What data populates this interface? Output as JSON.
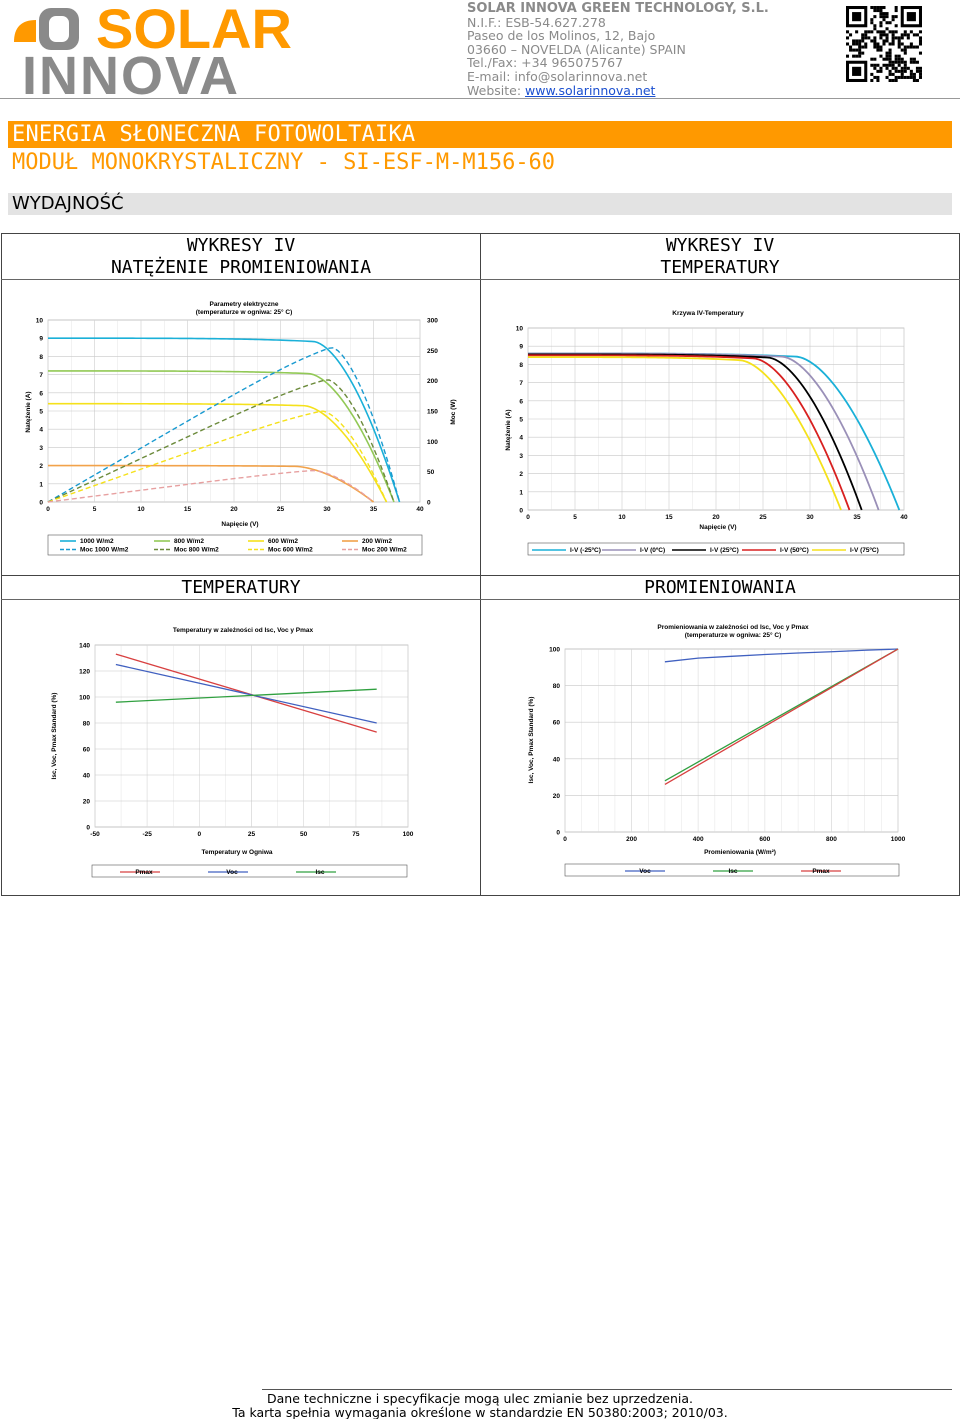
{
  "header": {
    "logo_text_top": "SOLAR",
    "logo_text_bottom": "INNOVA",
    "company_name": "SOLAR INNOVA GREEN TECHNOLOGY, S.L.",
    "nif": "N.I.F.: ESB-54.627.278",
    "address1": "Paseo de los Molinos, 12, Bajo",
    "address2": "03660 – NOVELDA (Alicante) SPAIN",
    "phone": "Tel./Fax: +34 965075767",
    "email": "E-mail: info@solarinnova.net",
    "website_label": "Website: ",
    "website": "www.solarinnova.net"
  },
  "title": {
    "category": "ENERGIA SŁONECZNA FOTOWOLTAIKA",
    "product": "MODUŁ MONOKRYSTALICZNY - SI-ESF-M-M156-60",
    "section": "WYDAJNOŚĆ"
  },
  "panels": {
    "p1_head_1": "WYKRESY IV",
    "p1_head_2": "NATĘŻENIE PROMIENIOWANIA",
    "p2_head_1": "WYKRESY IV",
    "p2_head_2": "TEMPERATURY",
    "p3_head": "TEMPERATURY",
    "p4_head": "PROMIENIOWANIA"
  },
  "footer": {
    "line1": "Dane techniczne i specyfikacje mogą ulec zmianie bez uprzedzenia.",
    "line2": "Ta karta spełnia wymagania określone w standardzie EN 50380:2003; 2010/03."
  },
  "colors": {
    "orange": "#ff9900",
    "grey_band": "#e3e3e3"
  },
  "chart_data": [
    {
      "type": "line",
      "title": "Parametry elektryczne (temperaturze w ogniwa: 25° C)",
      "title_1": "Parametry elektryczne",
      "title_2": "(temperaturze w ogniwa: 25° C)",
      "xlabel": "Napięcie (V)",
      "ylabel": "Natężenie (A)",
      "y2label": "Moc (W)",
      "xlim": [
        0,
        40
      ],
      "ylim": [
        0,
        10
      ],
      "y2lim": [
        0,
        300
      ],
      "xticks": [
        "0",
        "5",
        "10",
        "15",
        "20",
        "25",
        "30",
        "35",
        "40"
      ],
      "yticks": [
        "0",
        "1",
        "2",
        "3",
        "4",
        "5",
        "6",
        "7",
        "8",
        "9",
        "10"
      ],
      "y2ticks": [
        "0",
        "50",
        "100",
        "150",
        "200",
        "250",
        "300"
      ],
      "series": [
        {
          "name": "1000 W/m2",
          "color": "#1ab0d8",
          "style": "solid",
          "isc": 9.0,
          "knee": 28.5,
          "voc": 37.8
        },
        {
          "name": "800 W/m2",
          "color": "#92c956",
          "style": "solid",
          "isc": 7.2,
          "knee": 28.0,
          "voc": 37.2
        },
        {
          "name": "600 W/m2",
          "color": "#f5e11b",
          "style": "solid",
          "isc": 5.4,
          "knee": 27.5,
          "voc": 36.4
        },
        {
          "name": "200 W/m2",
          "color": "#f2a24a",
          "style": "solid",
          "isc": 2.0,
          "knee": 26.5,
          "voc": 35.0
        },
        {
          "name": "Moc 1000 W/m2",
          "color": "#1a9ad0",
          "style": "dashed",
          "pmax": 255,
          "vmp": 30.5,
          "voc": 37.8
        },
        {
          "name": "Moc 800 W/m2",
          "color": "#6b8a3a",
          "style": "dashed",
          "pmax": 202,
          "vmp": 30.0,
          "voc": 37.2
        },
        {
          "name": "Moc 600 W/m2",
          "color": "#f5e11b",
          "style": "dashed",
          "pmax": 150,
          "vmp": 29.5,
          "voc": 36.4
        },
        {
          "name": "Moc 200 W/m2",
          "color": "#e7a0a0",
          "style": "dashed",
          "pmax": 52,
          "vmp": 28.5,
          "voc": 35.0
        }
      ]
    },
    {
      "type": "line",
      "title": "Krzywa IV-Temperatury",
      "xlabel": "Napięcie (V)",
      "ylabel": "Natężenie (A)",
      "xlim": [
        0,
        40
      ],
      "ylim": [
        0,
        10
      ],
      "xticks": [
        "0",
        "5",
        "10",
        "15",
        "20",
        "25",
        "30",
        "35",
        "40"
      ],
      "yticks": [
        "0",
        "1",
        "2",
        "3",
        "4",
        "5",
        "6",
        "7",
        "8",
        "9",
        "10"
      ],
      "series": [
        {
          "name": "I-V (-25ºC)",
          "color": "#1ab0d8",
          "isc": 8.6,
          "knee": 28.5,
          "voc": 39.5
        },
        {
          "name": "I-V (0ºC)",
          "color": "#9a90b8",
          "isc": 8.6,
          "knee": 27.0,
          "voc": 37.3
        },
        {
          "name": "I-V (25ºC)",
          "color": "#000000",
          "isc": 8.55,
          "knee": 25.5,
          "voc": 35.5
        },
        {
          "name": "I-V (50ºC)",
          "color": "#d82020",
          "isc": 8.5,
          "knee": 24.0,
          "voc": 34.2
        },
        {
          "name": "I-V (75ºC)",
          "color": "#f5e11b",
          "isc": 8.4,
          "knee": 22.5,
          "voc": 33.3
        }
      ]
    },
    {
      "type": "line",
      "title": "Temperatury w zależności od Isc, Voc y Pmax",
      "xlabel": "Temperatury w Ogniwa",
      "ylabel": "Isc, Voc, Pmax Standard (%)",
      "xlim": [
        -50,
        100
      ],
      "ylim": [
        0,
        140
      ],
      "xticks": [
        "-50",
        "-25",
        "0",
        "25",
        "50",
        "75",
        "100"
      ],
      "yticks": [
        "0",
        "20",
        "40",
        "60",
        "80",
        "100",
        "120",
        "140"
      ],
      "x": [
        -40,
        85
      ],
      "series": [
        {
          "name": "Pmax",
          "color": "#d84040",
          "values": [
            133,
            73
          ]
        },
        {
          "name": "Voc",
          "color": "#4060c0",
          "values": [
            125,
            80
          ]
        },
        {
          "name": "Isc",
          "color": "#30a040",
          "values": [
            96,
            106
          ]
        }
      ]
    },
    {
      "type": "line",
      "title": "Promieniowania w zależności od Isc, Voc y Pmax (temperaturze w ogniwa: 25° C)",
      "title_1": "Promieniowania w zależności od Isc, Voc y Pmax",
      "title_2": "(temperaturze w ogniwa: 25° C)",
      "xlabel": "Promieniowania (W/m²)",
      "ylabel": "Isc, Voc, Pmax Standard (%)",
      "xlim": [
        0,
        1000
      ],
      "ylim": [
        0,
        100
      ],
      "xticks": [
        "0",
        "200",
        "400",
        "600",
        "800",
        "1000"
      ],
      "yticks": [
        "0",
        "20",
        "40",
        "60",
        "80",
        "100"
      ],
      "series": [
        {
          "name": "Voc",
          "color": "#4060c0",
          "x": [
            300,
            400,
            500,
            600,
            700,
            800,
            900,
            1000
          ],
          "values": [
            93,
            95,
            96,
            97,
            97.8,
            98.5,
            99.3,
            100
          ]
        },
        {
          "name": "Isc",
          "color": "#30a040",
          "x": [
            300,
            1000
          ],
          "values": [
            28,
            100
          ]
        },
        {
          "name": "Pmax",
          "color": "#d84040",
          "x": [
            300,
            1000
          ],
          "values": [
            26,
            100
          ]
        }
      ]
    }
  ]
}
